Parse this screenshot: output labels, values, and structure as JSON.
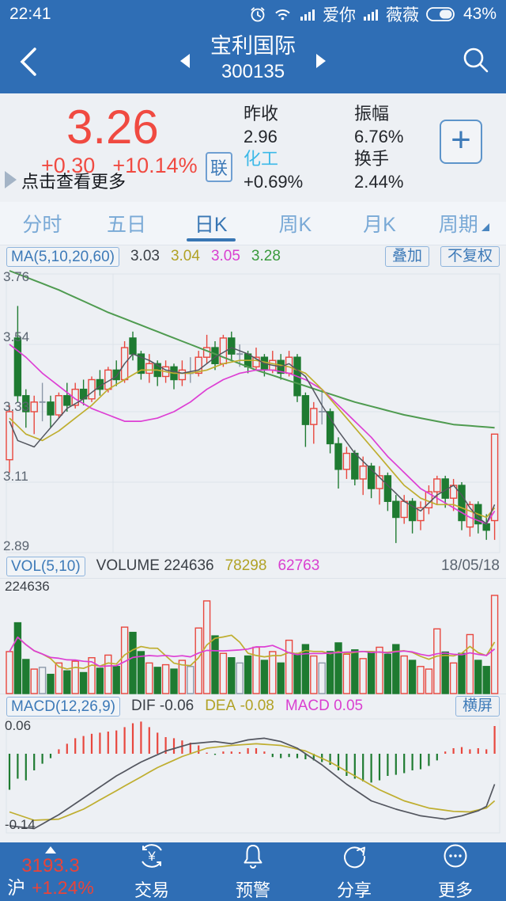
{
  "status_bar": {
    "time": "22:41",
    "carrier1": "爱你",
    "carrier2": "薇薇",
    "battery": "43%",
    "icons": [
      "alarm-icon",
      "wifi-icon",
      "signal-icon",
      "signal-icon",
      "battery-icon"
    ]
  },
  "header": {
    "title": "宝利国际",
    "code": "300135"
  },
  "quote": {
    "price": "3.26",
    "change": "+0.30",
    "change_pct": "+10.14%",
    "badge": "联",
    "more_hint": "点击查看更多",
    "stats_col1": [
      {
        "label": "昨收",
        "value": "2.96"
      },
      {
        "label": "化工",
        "value": "+0.69%"
      }
    ],
    "stats_col2": [
      {
        "label": "振幅",
        "value": "6.76%"
      },
      {
        "label": "换手",
        "value": "2.44%"
      }
    ],
    "add_button": "+"
  },
  "tabs": [
    {
      "label": "分时"
    },
    {
      "label": "五日"
    },
    {
      "label": "日K",
      "active": true
    },
    {
      "label": "周K"
    },
    {
      "label": "月K"
    },
    {
      "label": "周期",
      "has_arrow": true
    }
  ],
  "indicator_bar": {
    "ma_label": "MA(5,10,20,60)",
    "ma5": "3.03",
    "ma10": "3.04",
    "ma20": "3.05",
    "ma60": "3.28",
    "overlay_btn": "叠加",
    "adjust_btn": "不复权"
  },
  "main_chart": {
    "axis_labels": [
      "3.76",
      "3.54",
      "3.33",
      "3.11",
      "2.89"
    ]
  },
  "volume_bar": {
    "label": "VOL(5,10)",
    "volume_label": "VOLUME",
    "volume_value": "224636",
    "ma5_value": "78298",
    "ma10_value": "62763",
    "date": "18/05/18",
    "axis_max": "224636"
  },
  "macd_bar": {
    "label": "MACD(12,26,9)",
    "dif_label": "DIF",
    "dif_value": "-0.06",
    "dea_label": "DEA",
    "dea_value": "-0.08",
    "macd_label": "MACD",
    "macd_value": "0.05",
    "landscape_btn": "横屏",
    "axis_max": "0.06",
    "axis_min": "-0.14"
  },
  "bottom_nav": {
    "index": {
      "value": "3193.3",
      "market": "沪",
      "change": "+1.24%"
    },
    "items": [
      {
        "label": "交易",
        "icon": "yuan-circle-icon"
      },
      {
        "label": "预警",
        "icon": "bell-icon"
      },
      {
        "label": "分享",
        "icon": "share-icon"
      },
      {
        "label": "更多",
        "icon": "more-icon"
      }
    ]
  },
  "colors": {
    "app_blue": "#2f6eb5",
    "up_red": "#e8473e",
    "down_green": "#1e7b31",
    "doji_gray": "#8b98a8",
    "ma5": "#53565f",
    "ma10": "#bfae2f",
    "ma20": "#dd3fd4",
    "ma60": "#4f9b50",
    "bg": "#edf0f4",
    "grid": "#dde3ea",
    "accent_cyan": "#3cb9e8",
    "price_red": "#f04a41"
  },
  "chart_data": [
    {
      "type": "candlestick",
      "title": "日K 宝利国际 300135",
      "ylim": [
        2.89,
        3.76
      ],
      "axis_ticks": [
        3.76,
        3.54,
        3.33,
        3.11,
        2.89
      ],
      "last_date": "18/05/18",
      "candles_ochl": [
        [
          3.18,
          3.33,
          3.35,
          3.14
        ],
        [
          3.56,
          3.38,
          3.66,
          3.36
        ],
        [
          3.38,
          3.33,
          3.4,
          3.28
        ],
        [
          3.33,
          3.36,
          3.38,
          3.26
        ],
        [
          3.36,
          3.36,
          3.42,
          3.3
        ],
        [
          3.36,
          3.32,
          3.38,
          3.28
        ],
        [
          3.32,
          3.38,
          3.39,
          3.31
        ],
        [
          3.38,
          3.35,
          3.42,
          3.33
        ],
        [
          3.35,
          3.4,
          3.42,
          3.34
        ],
        [
          3.4,
          3.37,
          3.43,
          3.35
        ],
        [
          3.37,
          3.43,
          3.44,
          3.36
        ],
        [
          3.43,
          3.4,
          3.46,
          3.38
        ],
        [
          3.4,
          3.46,
          3.47,
          3.39
        ],
        [
          3.46,
          3.43,
          3.49,
          3.41
        ],
        [
          3.43,
          3.53,
          3.55,
          3.42
        ],
        [
          3.56,
          3.51,
          3.58,
          3.49
        ],
        [
          3.51,
          3.45,
          3.52,
          3.43
        ],
        [
          3.45,
          3.48,
          3.51,
          3.42
        ],
        [
          3.48,
          3.44,
          3.49,
          3.41
        ],
        [
          3.44,
          3.47,
          3.49,
          3.42
        ],
        [
          3.47,
          3.43,
          3.48,
          3.4
        ],
        [
          3.43,
          3.46,
          3.49,
          3.41
        ],
        [
          3.45,
          3.45,
          3.5,
          3.42
        ],
        [
          3.45,
          3.5,
          3.52,
          3.44
        ],
        [
          3.5,
          3.53,
          3.57,
          3.48
        ],
        [
          3.53,
          3.48,
          3.55,
          3.46
        ],
        [
          3.48,
          3.56,
          3.57,
          3.47
        ],
        [
          3.56,
          3.51,
          3.58,
          3.49
        ],
        [
          3.51,
          3.51,
          3.54,
          3.47
        ],
        [
          3.51,
          3.47,
          3.52,
          3.45
        ],
        [
          3.47,
          3.5,
          3.53,
          3.46
        ],
        [
          3.5,
          3.46,
          3.51,
          3.44
        ],
        [
          3.46,
          3.49,
          3.52,
          3.45
        ],
        [
          3.49,
          3.45,
          3.51,
          3.43
        ],
        [
          3.45,
          3.5,
          3.52,
          3.44
        ],
        [
          3.5,
          3.38,
          3.51,
          3.36
        ],
        [
          3.38,
          3.29,
          3.39,
          3.22
        ],
        [
          3.29,
          3.34,
          3.36,
          3.23
        ],
        [
          3.33,
          3.33,
          3.4,
          3.29
        ],
        [
          3.33,
          3.23,
          3.34,
          3.2
        ],
        [
          3.23,
          3.15,
          3.25,
          3.09
        ],
        [
          3.15,
          3.2,
          3.22,
          3.12
        ],
        [
          3.2,
          3.12,
          3.21,
          3.1
        ],
        [
          3.12,
          3.16,
          3.19,
          3.07
        ],
        [
          3.16,
          3.09,
          3.17,
          3.06
        ],
        [
          3.09,
          3.13,
          3.16,
          3.04
        ],
        [
          3.13,
          3.05,
          3.14,
          3.02
        ],
        [
          3.05,
          3.0,
          3.07,
          2.92
        ],
        [
          3.0,
          3.05,
          3.07,
          2.98
        ],
        [
          3.05,
          2.99,
          3.06,
          2.95
        ],
        [
          2.99,
          3.03,
          3.05,
          2.96
        ],
        [
          3.03,
          3.08,
          3.1,
          3.01
        ],
        [
          3.08,
          3.12,
          3.13,
          3.04
        ],
        [
          3.12,
          3.06,
          3.13,
          3.03
        ],
        [
          3.06,
          3.1,
          3.12,
          3.02
        ],
        [
          3.1,
          2.99,
          3.11,
          2.96
        ],
        [
          2.97,
          3.04,
          3.05,
          2.94
        ],
        [
          3.04,
          2.98,
          3.05,
          2.95
        ],
        [
          2.98,
          2.96,
          3.01,
          2.93
        ],
        [
          2.99,
          3.26,
          3.26,
          2.93
        ]
      ],
      "ma5_points": [
        [
          0,
          3.3
        ],
        [
          1,
          3.24
        ],
        [
          3,
          3.22
        ],
        [
          5,
          3.28
        ],
        [
          7,
          3.34
        ],
        [
          9,
          3.37
        ],
        [
          11,
          3.41
        ],
        [
          13,
          3.44
        ],
        [
          14,
          3.48
        ],
        [
          15,
          3.51
        ],
        [
          17,
          3.49
        ],
        [
          19,
          3.46
        ],
        [
          21,
          3.45
        ],
        [
          23,
          3.46
        ],
        [
          25,
          3.5
        ],
        [
          27,
          3.53
        ],
        [
          29,
          3.51
        ],
        [
          31,
          3.48
        ],
        [
          33,
          3.47
        ],
        [
          34,
          3.48
        ],
        [
          36,
          3.44
        ],
        [
          38,
          3.35
        ],
        [
          40,
          3.27
        ],
        [
          42,
          3.2
        ],
        [
          44,
          3.15
        ],
        [
          46,
          3.1
        ],
        [
          48,
          3.05
        ],
        [
          50,
          3.02
        ],
        [
          52,
          3.07
        ],
        [
          54,
          3.1
        ],
        [
          55,
          3.07
        ],
        [
          56,
          3.03
        ],
        [
          57,
          3.0
        ],
        [
          58,
          2.98
        ],
        [
          59,
          3.04
        ]
      ],
      "ma10_points": [
        [
          0,
          3.31
        ],
        [
          2,
          3.26
        ],
        [
          4,
          3.24
        ],
        [
          6,
          3.27
        ],
        [
          8,
          3.31
        ],
        [
          10,
          3.35
        ],
        [
          12,
          3.4
        ],
        [
          14,
          3.43
        ],
        [
          16,
          3.46
        ],
        [
          18,
          3.46
        ],
        [
          20,
          3.45
        ],
        [
          22,
          3.45
        ],
        [
          24,
          3.46
        ],
        [
          26,
          3.48
        ],
        [
          28,
          3.49
        ],
        [
          30,
          3.49
        ],
        [
          32,
          3.48
        ],
        [
          34,
          3.47
        ],
        [
          36,
          3.45
        ],
        [
          38,
          3.4
        ],
        [
          40,
          3.34
        ],
        [
          42,
          3.28
        ],
        [
          44,
          3.22
        ],
        [
          46,
          3.16
        ],
        [
          48,
          3.1
        ],
        [
          50,
          3.06
        ],
        [
          52,
          3.04
        ],
        [
          54,
          3.04
        ],
        [
          56,
          3.02
        ],
        [
          58,
          3.0
        ],
        [
          59,
          3.03
        ]
      ],
      "ma20_points": [
        [
          0,
          3.54
        ],
        [
          2,
          3.5
        ],
        [
          4,
          3.45
        ],
        [
          6,
          3.41
        ],
        [
          8,
          3.37
        ],
        [
          10,
          3.34
        ],
        [
          12,
          3.32
        ],
        [
          14,
          3.3
        ],
        [
          16,
          3.3
        ],
        [
          18,
          3.31
        ],
        [
          20,
          3.33
        ],
        [
          22,
          3.36
        ],
        [
          24,
          3.4
        ],
        [
          26,
          3.43
        ],
        [
          28,
          3.45
        ],
        [
          30,
          3.46
        ],
        [
          32,
          3.46
        ],
        [
          34,
          3.45
        ],
        [
          36,
          3.43
        ],
        [
          38,
          3.4
        ],
        [
          40,
          3.35
        ],
        [
          42,
          3.3
        ],
        [
          44,
          3.25
        ],
        [
          46,
          3.19
        ],
        [
          48,
          3.14
        ],
        [
          50,
          3.09
        ],
        [
          52,
          3.06
        ],
        [
          54,
          3.03
        ],
        [
          56,
          3.0
        ],
        [
          58,
          2.98
        ],
        [
          59,
          3.02
        ]
      ],
      "ma60_points": [
        [
          0,
          3.77
        ],
        [
          6,
          3.71
        ],
        [
          12,
          3.64
        ],
        [
          18,
          3.58
        ],
        [
          24,
          3.52
        ],
        [
          30,
          3.46
        ],
        [
          36,
          3.41
        ],
        [
          42,
          3.36
        ],
        [
          48,
          3.32
        ],
        [
          54,
          3.29
        ],
        [
          59,
          3.28
        ]
      ]
    },
    {
      "type": "bar",
      "title": "VOLUME",
      "ylim": [
        0,
        224636
      ],
      "values": [
        96000,
        162000,
        78000,
        56000,
        60000,
        44000,
        70000,
        52000,
        74000,
        48000,
        82000,
        58000,
        88000,
        62000,
        152000,
        140000,
        96000,
        70000,
        60000,
        66000,
        56000,
        76000,
        62000,
        150000,
        212000,
        132000,
        92000,
        82000,
        70000,
        86000,
        106000,
        76000,
        96000,
        70000,
        122000,
        92000,
        112000,
        86000,
        70000,
        96000,
        116000,
        90000,
        100000,
        80000,
        96000,
        106000,
        90000,
        112000,
        86000,
        76000,
        62000,
        56000,
        148000,
        95000,
        70000,
        92000,
        135000,
        76000,
        62000,
        224636
      ]
    },
    {
      "type": "macd",
      "title": "MACD(12,26,9)",
      "ylim": [
        -0.14,
        0.06
      ],
      "hist": [
        -0.065,
        -0.045,
        -0.048,
        -0.03,
        -0.018,
        -0.008,
        0.008,
        0.018,
        0.028,
        0.032,
        0.036,
        0.038,
        0.04,
        0.042,
        0.048,
        0.055,
        0.058,
        0.048,
        0.038,
        0.03,
        0.028,
        0.024,
        0.02,
        0.015,
        0.002,
        -0.002,
        0.004,
        0.004,
        0.003,
        0.01,
        0.01,
        0.004,
        -0.006,
        -0.008,
        -0.006,
        -0.008,
        -0.01,
        -0.012,
        -0.015,
        -0.02,
        -0.03,
        -0.04,
        -0.045,
        -0.05,
        -0.052,
        -0.048,
        -0.04,
        -0.038,
        -0.035,
        -0.03,
        -0.028,
        -0.022,
        -0.012,
        0.004,
        0.01,
        0.012,
        0.008,
        0.01,
        0.008,
        0.05
      ],
      "dif_points": [
        [
          0,
          -0.13
        ],
        [
          3,
          -0.135
        ],
        [
          6,
          -0.11
        ],
        [
          10,
          -0.07
        ],
        [
          13,
          -0.04
        ],
        [
          16,
          -0.015
        ],
        [
          19,
          0.005
        ],
        [
          22,
          0.018
        ],
        [
          25,
          0.022
        ],
        [
          27,
          0.018
        ],
        [
          29,
          0.025
        ],
        [
          31,
          0.028
        ],
        [
          33,
          0.022
        ],
        [
          35,
          0.01
        ],
        [
          38,
          -0.02
        ],
        [
          41,
          -0.055
        ],
        [
          44,
          -0.085
        ],
        [
          47,
          -0.1
        ],
        [
          50,
          -0.112
        ],
        [
          53,
          -0.118
        ],
        [
          55,
          -0.112
        ],
        [
          57,
          -0.103
        ],
        [
          58,
          -0.095
        ],
        [
          59,
          -0.055
        ]
      ],
      "dea_points": [
        [
          0,
          -0.105
        ],
        [
          3,
          -0.12
        ],
        [
          6,
          -0.118
        ],
        [
          9,
          -0.1
        ],
        [
          12,
          -0.075
        ],
        [
          15,
          -0.05
        ],
        [
          18,
          -0.025
        ],
        [
          21,
          -0.005
        ],
        [
          24,
          0.01
        ],
        [
          27,
          0.015
        ],
        [
          30,
          0.018
        ],
        [
          33,
          0.015
        ],
        [
          36,
          0.005
        ],
        [
          39,
          -0.015
        ],
        [
          42,
          -0.04
        ],
        [
          45,
          -0.065
        ],
        [
          48,
          -0.085
        ],
        [
          51,
          -0.098
        ],
        [
          54,
          -0.104
        ],
        [
          56,
          -0.105
        ],
        [
          58,
          -0.098
        ],
        [
          59,
          -0.085
        ]
      ]
    }
  ]
}
